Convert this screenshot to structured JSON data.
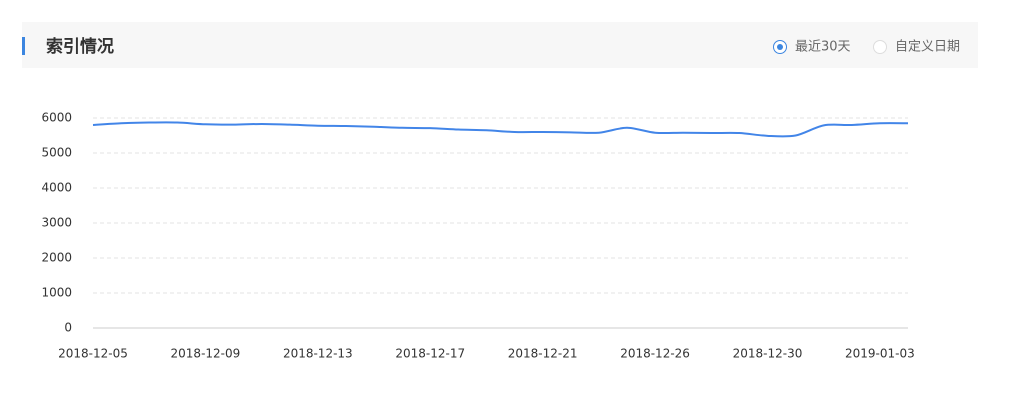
{
  "header": {
    "title": "索引情况",
    "options": [
      {
        "label": "最近30天",
        "selected": true
      },
      {
        "label": "自定义日期",
        "selected": false
      }
    ]
  },
  "chart_data": {
    "type": "line",
    "categories": [
      "2018-12-05",
      null,
      null,
      null,
      "2018-12-09",
      null,
      null,
      null,
      "2018-12-13",
      null,
      null,
      null,
      "2018-12-17",
      null,
      null,
      null,
      "2018-12-21",
      null,
      null,
      null,
      "2018-12-26",
      null,
      null,
      null,
      "2018-12-30",
      null,
      null,
      null,
      "2019-01-03",
      null
    ],
    "series": [
      {
        "color": "#4285e8",
        "values": [
          5800,
          5850,
          5870,
          5870,
          5820,
          5810,
          5830,
          5810,
          5780,
          5770,
          5750,
          5720,
          5710,
          5670,
          5650,
          5600,
          5600,
          5590,
          5580,
          5720,
          5580,
          5580,
          5570,
          5570,
          5490,
          5500,
          5790,
          5800,
          5850,
          5850
        ]
      }
    ],
    "ylim": [
      0,
      6000
    ],
    "yticks": [
      0,
      1000,
      2000,
      3000,
      4000,
      5000,
      6000
    ],
    "grid": true
  }
}
